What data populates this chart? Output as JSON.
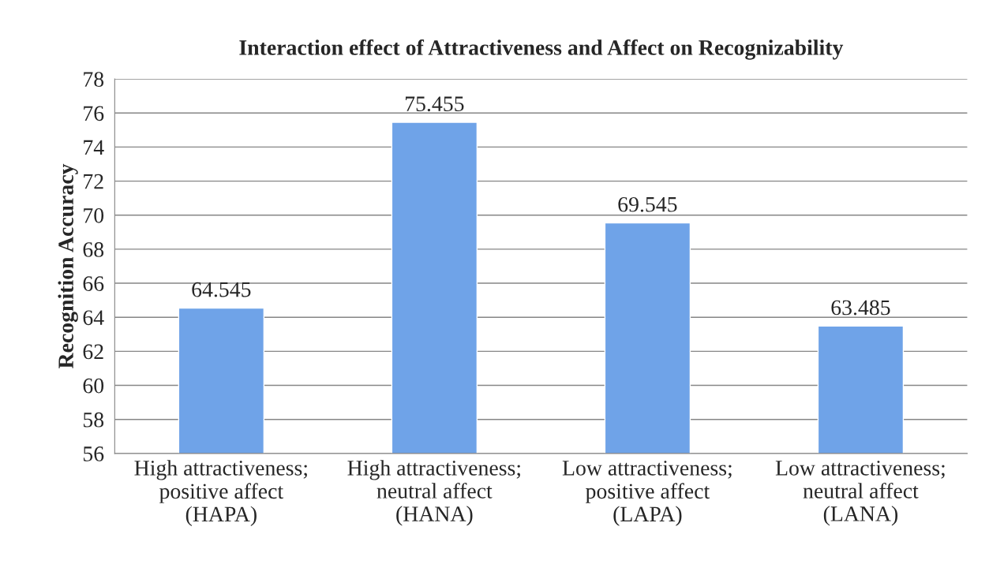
{
  "chart_data": {
    "type": "bar",
    "title": "Interaction effect of Attractiveness and Affect on Recognizability",
    "ylabel": "Recognition Accuracy",
    "categories": [
      "High attractiveness;\npositive affect\n(HAPA)",
      "High attractiveness;\nneutral affect\n(HANA)",
      "Low attractiveness;\npositive affect\n(LAPA)",
      "Low attractiveness;\nneutral affect\n(LANA)"
    ],
    "values": [
      64.545,
      75.455,
      69.545,
      63.485
    ],
    "color": "#6fa3e8",
    "ylim": [
      56,
      78
    ],
    "yticks": [
      56,
      58,
      60,
      62,
      64,
      66,
      68,
      70,
      72,
      74,
      76,
      78
    ],
    "grid": "y",
    "data_labels": true
  }
}
